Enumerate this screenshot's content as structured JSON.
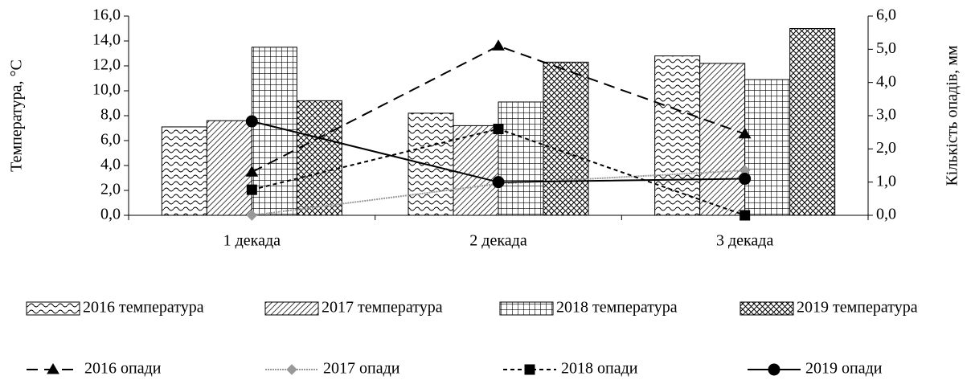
{
  "chart_data": {
    "type": "bar",
    "categories": [
      "1 декада",
      "2 декада",
      "3 декада"
    ],
    "ylabel": "Температура,  °С",
    "y2label": "Кількість опадів, мм",
    "ylim": [
      0,
      16
    ],
    "yticks": [
      {
        "value": 0,
        "label": "0,0"
      },
      {
        "value": 2,
        "label": "2,0"
      },
      {
        "value": 4,
        "label": "4,0"
      },
      {
        "value": 6,
        "label": "6,0"
      },
      {
        "value": 8,
        "label": "8,0"
      },
      {
        "value": 10,
        "label": "10,0"
      },
      {
        "value": 12,
        "label": "12,0"
      },
      {
        "value": 14,
        "label": "14,0"
      },
      {
        "value": 16,
        "label": "16,0"
      }
    ],
    "y2lim": [
      0,
      6
    ],
    "y2ticks": [
      {
        "value": 0,
        "label": "0,0"
      },
      {
        "value": 1,
        "label": "1,0"
      },
      {
        "value": 2,
        "label": "2,0"
      },
      {
        "value": 3,
        "label": "3,0"
      },
      {
        "value": 4,
        "label": "4,0"
      },
      {
        "value": 5,
        "label": "5,0"
      },
      {
        "value": 6,
        "label": "6,0"
      }
    ],
    "series": [
      {
        "name": "2016 температура",
        "type": "bar",
        "color": "#000000",
        "pattern": "waves",
        "values": [
          7.1,
          8.2,
          12.8
        ]
      },
      {
        "name": "2017 температура",
        "type": "bar",
        "color": "#000000",
        "pattern": "diagonal",
        "values": [
          7.6,
          7.2,
          12.2
        ]
      },
      {
        "name": "2018 температура",
        "type": "bar",
        "color": "#000000",
        "pattern": "grid",
        "values": [
          13.5,
          9.1,
          10.9
        ]
      },
      {
        "name": "2019 температура",
        "type": "bar",
        "color": "#000000",
        "pattern": "crosshatch",
        "values": [
          9.2,
          12.3,
          15.0
        ]
      },
      {
        "name": "2016 опади",
        "type": "line",
        "axis": "y2",
        "color": "#000000",
        "dash": "14,8",
        "marker": "triangle",
        "values": [
          1.3,
          5.1,
          2.45
        ]
      },
      {
        "name": "2017 опади",
        "type": "line",
        "axis": "y2",
        "color": "#999999",
        "dash": "2,1",
        "marker": "diamond",
        "values": [
          0,
          0.95,
          1.35
        ]
      },
      {
        "name": "2018 опади",
        "type": "line",
        "axis": "y2",
        "color": "#000000",
        "dash": "5,4",
        "marker": "square",
        "values": [
          0.77,
          2.6,
          0
        ]
      },
      {
        "name": "2019 опади",
        "type": "line",
        "axis": "y2",
        "color": "#000000",
        "dash": "none",
        "marker": "circle",
        "values": [
          2.83,
          1.0,
          1.1
        ]
      }
    ]
  }
}
